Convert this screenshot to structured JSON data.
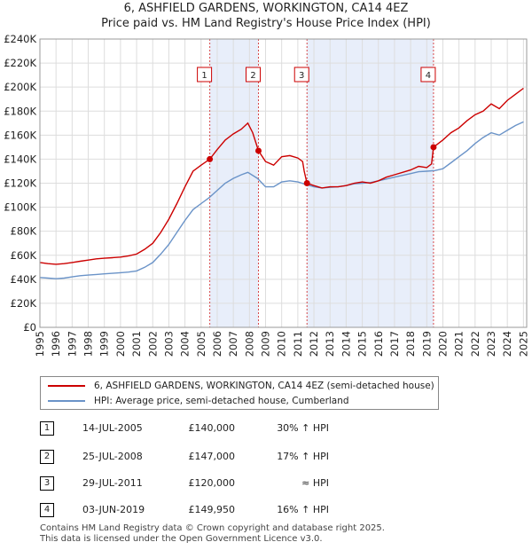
{
  "title": "6, ASHFIELD GARDENS, WORKINGTON, CA14 4EZ",
  "subtitle": "Price paid vs. HM Land Registry's House Price Index (HPI)",
  "colors": {
    "property": "#cc0000",
    "hpi": "#6a93c8",
    "shade": "#e8eefa",
    "grid": "#dddddd"
  },
  "chart_data": {
    "type": "line",
    "ylim": [
      0,
      240000
    ],
    "xlim": [
      1995,
      2025.2
    ],
    "y_ticks": [
      0,
      20000,
      40000,
      60000,
      80000,
      100000,
      120000,
      140000,
      160000,
      180000,
      200000,
      220000,
      240000
    ],
    "y_tick_labels": [
      "£0",
      "£20K",
      "£40K",
      "£60K",
      "£80K",
      "£100K",
      "£120K",
      "£140K",
      "£160K",
      "£180K",
      "£200K",
      "£220K",
      "£240K"
    ],
    "x_tick_labels": [
      "1995",
      "1996",
      "1997",
      "1998",
      "1999",
      "2000",
      "2001",
      "2002",
      "2003",
      "2004",
      "2005",
      "2006",
      "2007",
      "2008",
      "2009",
      "2010",
      "2011",
      "2012",
      "2013",
      "2014",
      "2015",
      "2016",
      "2017",
      "2018",
      "2019",
      "2020",
      "2021",
      "2022",
      "2023",
      "2024",
      "2025"
    ],
    "series": [
      {
        "name": "6, ASHFIELD GARDENS, WORKINGTON, CA14 4EZ (semi-detached house)",
        "color": "#cc0000",
        "points": [
          [
            1995.0,
            54000
          ],
          [
            1995.5,
            53000
          ],
          [
            1996.0,
            52500
          ],
          [
            1996.5,
            53000
          ],
          [
            1997.0,
            54000
          ],
          [
            1997.5,
            55000
          ],
          [
            1998.0,
            56000
          ],
          [
            1998.5,
            57000
          ],
          [
            1999.0,
            57500
          ],
          [
            1999.5,
            58000
          ],
          [
            2000.0,
            58500
          ],
          [
            2000.5,
            59500
          ],
          [
            2001.0,
            61000
          ],
          [
            2001.5,
            65000
          ],
          [
            2002.0,
            70000
          ],
          [
            2002.5,
            79000
          ],
          [
            2003.0,
            90000
          ],
          [
            2003.5,
            103000
          ],
          [
            2004.0,
            117000
          ],
          [
            2004.5,
            130000
          ],
          [
            2005.0,
            135000
          ],
          [
            2005.54,
            140000
          ],
          [
            2006.0,
            148000
          ],
          [
            2006.5,
            156000
          ],
          [
            2007.0,
            161000
          ],
          [
            2007.5,
            165000
          ],
          [
            2007.9,
            170000
          ],
          [
            2008.2,
            162000
          ],
          [
            2008.56,
            147000
          ],
          [
            2009.0,
            138000
          ],
          [
            2009.5,
            135000
          ],
          [
            2010.0,
            142000
          ],
          [
            2010.5,
            143000
          ],
          [
            2011.0,
            141000
          ],
          [
            2011.3,
            138000
          ],
          [
            2011.4,
            130000
          ],
          [
            2011.57,
            120000
          ],
          [
            2012.0,
            118000
          ],
          [
            2012.5,
            116000
          ],
          [
            2013.0,
            117000
          ],
          [
            2013.5,
            117000
          ],
          [
            2014.0,
            118000
          ],
          [
            2014.5,
            120000
          ],
          [
            2015.0,
            121000
          ],
          [
            2015.5,
            120000
          ],
          [
            2016.0,
            122000
          ],
          [
            2016.5,
            125000
          ],
          [
            2017.0,
            127000
          ],
          [
            2017.5,
            129000
          ],
          [
            2018.0,
            131000
          ],
          [
            2018.5,
            134000
          ],
          [
            2019.0,
            133000
          ],
          [
            2019.3,
            136000
          ],
          [
            2019.42,
            149950
          ],
          [
            2020.0,
            156000
          ],
          [
            2020.5,
            162000
          ],
          [
            2021.0,
            166000
          ],
          [
            2021.5,
            172000
          ],
          [
            2022.0,
            177000
          ],
          [
            2022.5,
            180000
          ],
          [
            2023.0,
            186000
          ],
          [
            2023.5,
            182000
          ],
          [
            2024.0,
            189000
          ],
          [
            2024.5,
            194000
          ],
          [
            2025.0,
            199000
          ]
        ]
      },
      {
        "name": "HPI: Average price, semi-detached house, Cumberland",
        "color": "#6a93c8",
        "points": [
          [
            1995.0,
            41500
          ],
          [
            1995.5,
            41000
          ],
          [
            1996.0,
            40500
          ],
          [
            1996.5,
            41000
          ],
          [
            1997.0,
            42000
          ],
          [
            1997.5,
            43000
          ],
          [
            1998.0,
            43500
          ],
          [
            1998.5,
            44000
          ],
          [
            1999.0,
            44500
          ],
          [
            1999.5,
            45000
          ],
          [
            2000.0,
            45500
          ],
          [
            2000.5,
            46000
          ],
          [
            2001.0,
            47000
          ],
          [
            2001.5,
            50000
          ],
          [
            2002.0,
            54000
          ],
          [
            2002.5,
            61000
          ],
          [
            2003.0,
            69000
          ],
          [
            2003.5,
            79000
          ],
          [
            2004.0,
            89000
          ],
          [
            2004.5,
            98000
          ],
          [
            2005.0,
            103000
          ],
          [
            2005.5,
            108000
          ],
          [
            2006.0,
            114000
          ],
          [
            2006.5,
            120000
          ],
          [
            2007.0,
            124000
          ],
          [
            2007.5,
            127000
          ],
          [
            2007.9,
            129000
          ],
          [
            2008.5,
            124000
          ],
          [
            2009.0,
            117000
          ],
          [
            2009.5,
            117000
          ],
          [
            2010.0,
            121000
          ],
          [
            2010.5,
            122000
          ],
          [
            2011.0,
            121000
          ],
          [
            2011.5,
            119000
          ],
          [
            2012.0,
            117000
          ],
          [
            2012.5,
            116000
          ],
          [
            2013.0,
            116500
          ],
          [
            2013.5,
            117000
          ],
          [
            2014.0,
            118000
          ],
          [
            2014.5,
            119500
          ],
          [
            2015.0,
            120000
          ],
          [
            2015.5,
            120500
          ],
          [
            2016.0,
            122000
          ],
          [
            2016.5,
            123500
          ],
          [
            2017.0,
            125000
          ],
          [
            2017.5,
            126500
          ],
          [
            2018.0,
            128000
          ],
          [
            2018.5,
            129500
          ],
          [
            2019.0,
            130000
          ],
          [
            2019.5,
            130500
          ],
          [
            2020.0,
            132000
          ],
          [
            2020.5,
            137000
          ],
          [
            2021.0,
            142000
          ],
          [
            2021.5,
            147000
          ],
          [
            2022.0,
            153000
          ],
          [
            2022.5,
            158000
          ],
          [
            2023.0,
            162000
          ],
          [
            2023.5,
            160000
          ],
          [
            2024.0,
            164000
          ],
          [
            2024.5,
            168000
          ],
          [
            2025.0,
            171000
          ]
        ]
      }
    ],
    "sales": [
      {
        "label": "1",
        "x": 2005.54,
        "y": 140000
      },
      {
        "label": "2",
        "x": 2008.56,
        "y": 147000
      },
      {
        "label": "3",
        "x": 2011.57,
        "y": 120000
      },
      {
        "label": "4",
        "x": 2019.42,
        "y": 149950
      }
    ],
    "shaded_ranges": [
      [
        2005.54,
        2008.56
      ],
      [
        2011.57,
        2019.42
      ]
    ]
  },
  "legend": {
    "property": "6, ASHFIELD GARDENS, WORKINGTON, CA14 4EZ (semi-detached house)",
    "hpi": "HPI: Average price, semi-detached house, Cumberland"
  },
  "transactions": [
    {
      "num": "1",
      "date": "14-JUL-2005",
      "price": "£140,000",
      "hpi": "30% ↑ HPI"
    },
    {
      "num": "2",
      "date": "25-JUL-2008",
      "price": "£147,000",
      "hpi": "17% ↑ HPI"
    },
    {
      "num": "3",
      "date": "29-JUL-2011",
      "price": "£120,000",
      "hpi": "≈ HPI"
    },
    {
      "num": "4",
      "date": "03-JUN-2019",
      "price": "£149,950",
      "hpi": "16% ↑ HPI"
    }
  ],
  "footer": {
    "line1": "Contains HM Land Registry data © Crown copyright and database right 2025.",
    "line2": "This data is licensed under the Open Government Licence v3.0."
  }
}
